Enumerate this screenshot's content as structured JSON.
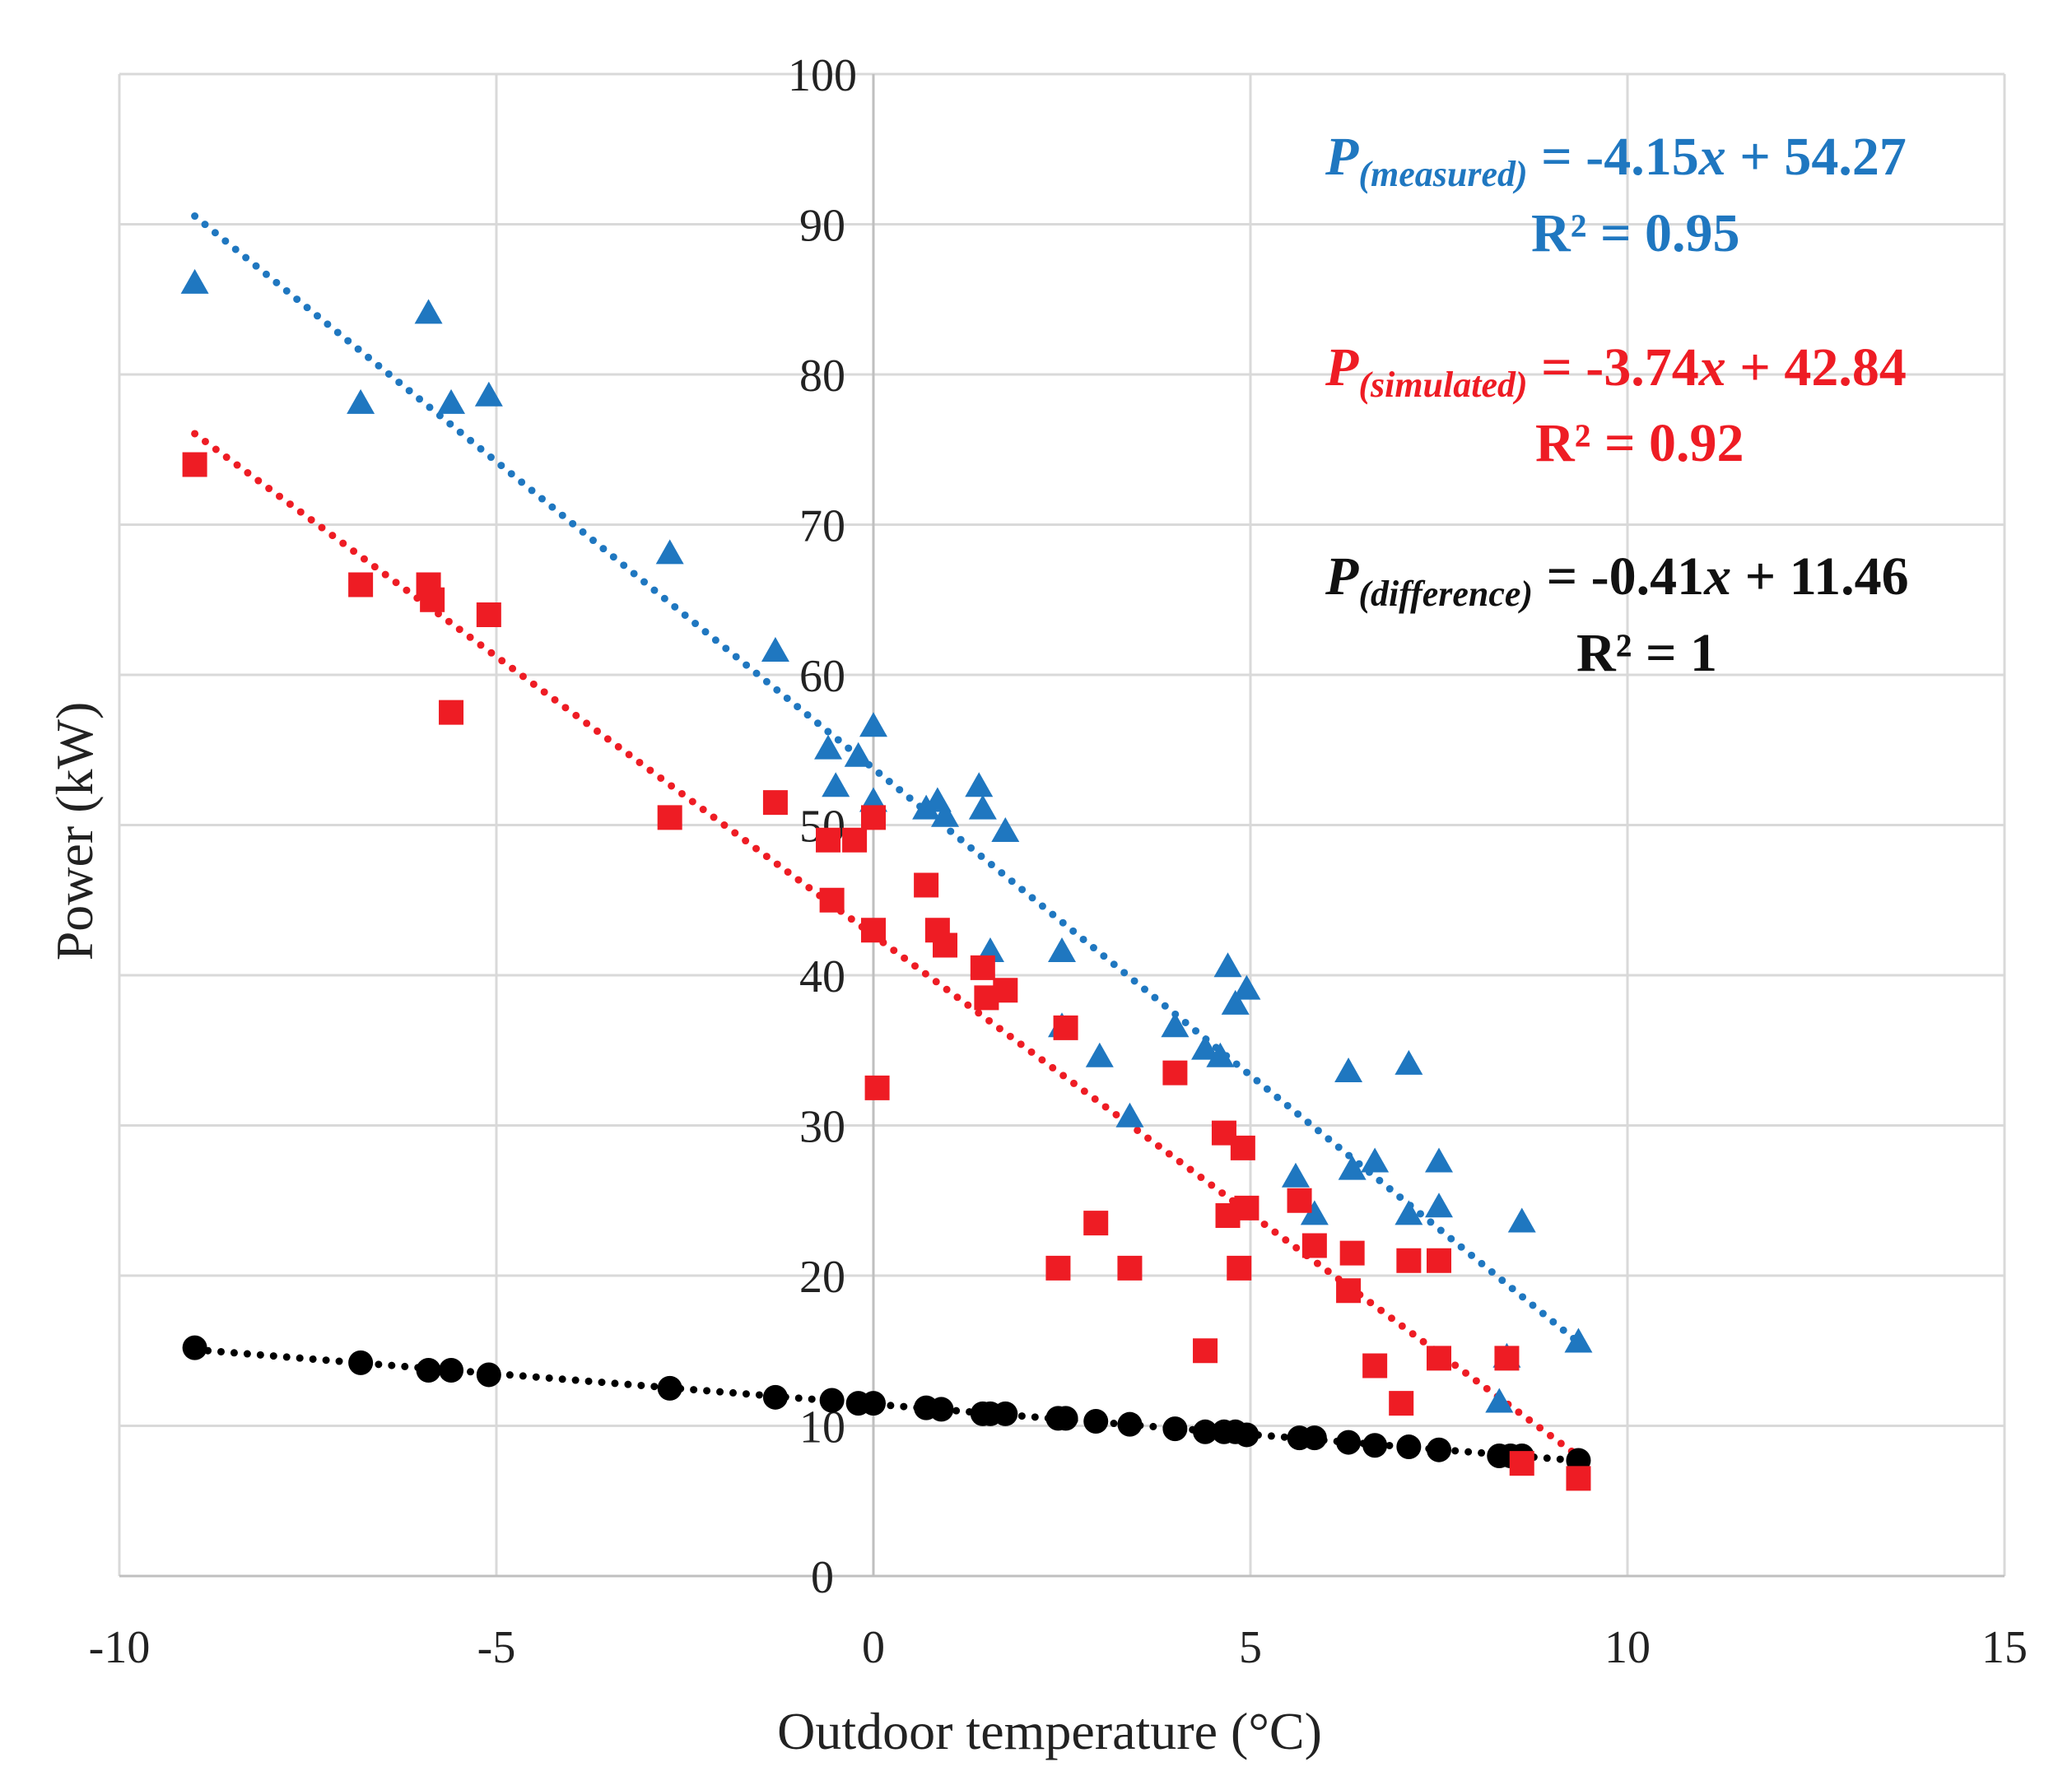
{
  "chart_data": {
    "type": "scatter",
    "xlabel": "Outdoor temperature (°C)",
    "ylabel": "Power (kW)",
    "xlim": [
      -10,
      15
    ],
    "ylim": [
      0,
      100
    ],
    "xticks": [
      "-10",
      "-5",
      "0",
      "5",
      "10",
      "15"
    ],
    "yticks": [
      "0",
      "10",
      "20",
      "30",
      "40",
      "50",
      "60",
      "70",
      "80",
      "90",
      "100"
    ],
    "grid": true,
    "series": [
      {
        "key": "measured",
        "marker": "triangle",
        "color": "#1F77C0",
        "points": [
          [
            -9.0,
            86
          ],
          [
            -6.8,
            78
          ],
          [
            -5.9,
            84
          ],
          [
            -5.6,
            78
          ],
          [
            -5.1,
            78.5
          ],
          [
            -2.7,
            68
          ],
          [
            -1.3,
            61.5
          ],
          [
            -0.6,
            55
          ],
          [
            -0.5,
            52.5
          ],
          [
            -0.2,
            54.5
          ],
          [
            0.0,
            56.5
          ],
          [
            0.0,
            51.5
          ],
          [
            0.7,
            51
          ],
          [
            0.85,
            51.5
          ],
          [
            0.95,
            50.5
          ],
          [
            1.4,
            52.5
          ],
          [
            1.45,
            51
          ],
          [
            1.55,
            41.5
          ],
          [
            1.75,
            49.5
          ],
          [
            2.5,
            41.5
          ],
          [
            2.5,
            36.5
          ],
          [
            3.0,
            34.5
          ],
          [
            3.4,
            30.5
          ],
          [
            4.0,
            36.5
          ],
          [
            4.4,
            35
          ],
          [
            4.6,
            34.5
          ],
          [
            4.7,
            40.5
          ],
          [
            4.8,
            38
          ],
          [
            4.95,
            39
          ],
          [
            5.6,
            26.5
          ],
          [
            5.85,
            24
          ],
          [
            6.3,
            33.5
          ],
          [
            6.35,
            27
          ],
          [
            6.65,
            27.5
          ],
          [
            7.1,
            34
          ],
          [
            7.1,
            24
          ],
          [
            7.5,
            27.5
          ],
          [
            7.5,
            24.5
          ],
          [
            8.3,
            11.5
          ],
          [
            8.4,
            14.5
          ],
          [
            8.6,
            23.5
          ],
          [
            9.35,
            15.5
          ]
        ]
      },
      {
        "key": "simulated",
        "marker": "square",
        "color": "#EE1C24",
        "points": [
          [
            -9.0,
            74
          ],
          [
            -6.8,
            66
          ],
          [
            -5.9,
            66
          ],
          [
            -5.85,
            65
          ],
          [
            -5.6,
            57.5
          ],
          [
            -5.1,
            64
          ],
          [
            -2.7,
            50.5
          ],
          [
            -1.3,
            51.5
          ],
          [
            -0.6,
            49
          ],
          [
            -0.55,
            45
          ],
          [
            -0.25,
            49
          ],
          [
            0.0,
            50.5
          ],
          [
            0.0,
            43
          ],
          [
            0.05,
            32.5
          ],
          [
            0.7,
            46
          ],
          [
            0.85,
            43
          ],
          [
            0.95,
            42
          ],
          [
            1.45,
            40.5
          ],
          [
            1.5,
            38.5
          ],
          [
            1.75,
            39
          ],
          [
            2.45,
            20.5
          ],
          [
            2.55,
            36.5
          ],
          [
            2.95,
            23.5
          ],
          [
            3.4,
            20.5
          ],
          [
            4.0,
            33.5
          ],
          [
            4.4,
            15
          ],
          [
            4.65,
            29.5
          ],
          [
            4.7,
            24
          ],
          [
            4.85,
            20.5
          ],
          [
            4.9,
            28.5
          ],
          [
            4.95,
            24.5
          ],
          [
            5.65,
            25
          ],
          [
            5.85,
            22
          ],
          [
            6.3,
            19
          ],
          [
            6.35,
            21.5
          ],
          [
            6.65,
            14
          ],
          [
            7.0,
            11.5
          ],
          [
            7.1,
            21
          ],
          [
            7.5,
            21
          ],
          [
            7.5,
            14.5
          ],
          [
            8.4,
            14.5
          ],
          [
            8.6,
            7.5
          ],
          [
            9.35,
            6.5
          ]
        ]
      },
      {
        "key": "difference",
        "marker": "circle",
        "color": "#000000",
        "points": [
          [
            -9.0,
            15.2
          ],
          [
            -6.8,
            14.2
          ],
          [
            -5.9,
            13.7
          ],
          [
            -5.6,
            13.7
          ],
          [
            -5.1,
            13.4
          ],
          [
            -2.7,
            12.5
          ],
          [
            -1.3,
            11.9
          ],
          [
            -0.55,
            11.7
          ],
          [
            -0.2,
            11.5
          ],
          [
            0.0,
            11.5
          ],
          [
            0.7,
            11.2
          ],
          [
            0.9,
            11.1
          ],
          [
            1.45,
            10.8
          ],
          [
            1.55,
            10.8
          ],
          [
            1.75,
            10.8
          ],
          [
            2.45,
            10.5
          ],
          [
            2.55,
            10.5
          ],
          [
            2.95,
            10.3
          ],
          [
            3.4,
            10.1
          ],
          [
            4.0,
            9.8
          ],
          [
            4.4,
            9.6
          ],
          [
            4.65,
            9.6
          ],
          [
            4.8,
            9.6
          ],
          [
            4.95,
            9.4
          ],
          [
            5.65,
            9.2
          ],
          [
            5.85,
            9.2
          ],
          [
            6.3,
            8.9
          ],
          [
            6.65,
            8.7
          ],
          [
            7.1,
            8.6
          ],
          [
            7.5,
            8.4
          ],
          [
            8.3,
            8.0
          ],
          [
            8.45,
            8.0
          ],
          [
            8.6,
            8.0
          ],
          [
            9.35,
            7.7
          ]
        ]
      }
    ],
    "trendlines": [
      {
        "key": "measured",
        "x_range": [
          -9.0,
          9.35
        ]
      },
      {
        "key": "simulated",
        "x_range": [
          -9.0,
          9.35
        ]
      },
      {
        "key": "difference",
        "x_range": [
          -9.0,
          9.35
        ]
      }
    ],
    "annotations": {
      "measured": {
        "p": "P",
        "sub": "(measured)",
        "equation": " = -4.15",
        "x": "x",
        "rest": " + 54.27",
        "r2": "R² = 0.95",
        "color": "#1F77C0"
      },
      "simulated": {
        "p": "P",
        "sub": "(simulated)",
        "equation": " = -3.74",
        "x": "x",
        "rest": " + 42.84",
        "r2": "R² = 0.92",
        "color": "#EE1C24"
      },
      "difference": {
        "p": "P",
        "sub": "(difference)",
        "equation": " = -0.41",
        "x": "x",
        "rest": " + 11.46",
        "r2": "R² = 1",
        "color": "#111111"
      }
    }
  }
}
